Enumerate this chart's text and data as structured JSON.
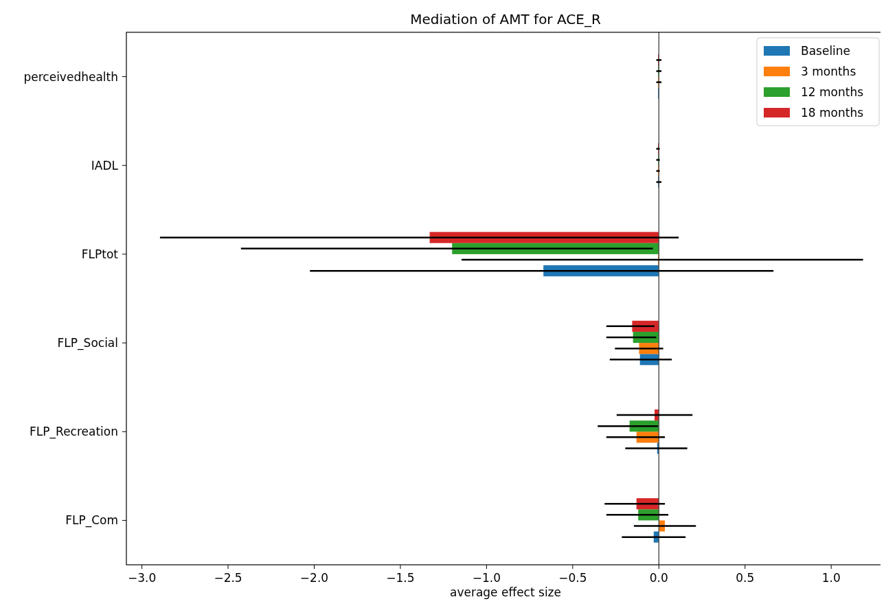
{
  "chart_data": {
    "type": "bar",
    "orientation": "horizontal",
    "title": "Mediation of AMT for ACE_R",
    "xlabel": "average effect size",
    "categories": [
      "perceivedhealth",
      "IADL",
      "FLPtot",
      "FLP_Social",
      "FLP_Recreation",
      "FLP_Com"
    ],
    "xlim": [
      -3.09,
      1.31
    ],
    "xticks": [
      {
        "value": -3,
        "label": "−3.0"
      },
      {
        "value": -2.5,
        "label": "−2.5"
      },
      {
        "value": -2,
        "label": "−2.0"
      },
      {
        "value": -1.5,
        "label": "−1.5"
      },
      {
        "value": -1,
        "label": "−1.0"
      },
      {
        "value": -0.5,
        "label": "−0.5"
      },
      {
        "value": 0,
        "label": "0.0"
      },
      {
        "value": 0.5,
        "label": "0.5"
      },
      {
        "value": 1,
        "label": "1.0"
      }
    ],
    "legend": "top right",
    "grid": false,
    "ref_lines": [
      {
        "axis": "x",
        "value": 0,
        "color": "#555555"
      }
    ],
    "series": [
      {
        "name": "Baseline",
        "color": "#1f77b4",
        "values": [
          -0.005,
          -0.005,
          -0.67,
          -0.11,
          -0.01,
          -0.03
        ],
        "errors": [
          null,
          [
            -0.01,
            0.01
          ],
          [
            -2.02,
            0.66
          ],
          [
            -0.28,
            0.07
          ],
          [
            -0.19,
            0.16
          ],
          [
            -0.21,
            0.15
          ]
        ]
      },
      {
        "name": "3 months",
        "color": "#ff7f0e",
        "values": [
          -0.005,
          -0.005,
          -0.005,
          -0.115,
          -0.13,
          0.035
        ],
        "errors": [
          [
            -0.01,
            0.01
          ],
          [
            -0.01,
            0
          ],
          [
            -1.14,
            1.18
          ],
          [
            -0.25,
            0.02
          ],
          [
            -0.3,
            0.03
          ],
          [
            -0.14,
            0.21
          ]
        ]
      },
      {
        "name": "12 months",
        "color": "#2ca02c",
        "values": [
          -0.005,
          -0.005,
          -1.2,
          -0.15,
          -0.17,
          -0.12
        ],
        "errors": [
          [
            -0.01,
            0.01
          ],
          [
            -0.01,
            0
          ],
          [
            -2.42,
            -0.04
          ],
          [
            -0.3,
            -0.02
          ],
          [
            -0.35,
            -0.01
          ],
          [
            -0.3,
            0.05
          ]
        ]
      },
      {
        "name": "18 months",
        "color": "#d62728",
        "values": [
          -0.005,
          -0.005,
          -1.33,
          -0.155,
          -0.025,
          -0.13
        ],
        "errors": [
          [
            -0.01,
            0.01
          ],
          [
            -0.01,
            0
          ],
          [
            -2.89,
            0.11
          ],
          [
            -0.3,
            -0.03
          ],
          [
            -0.24,
            0.19
          ],
          [
            -0.31,
            0.03
          ]
        ]
      }
    ]
  }
}
